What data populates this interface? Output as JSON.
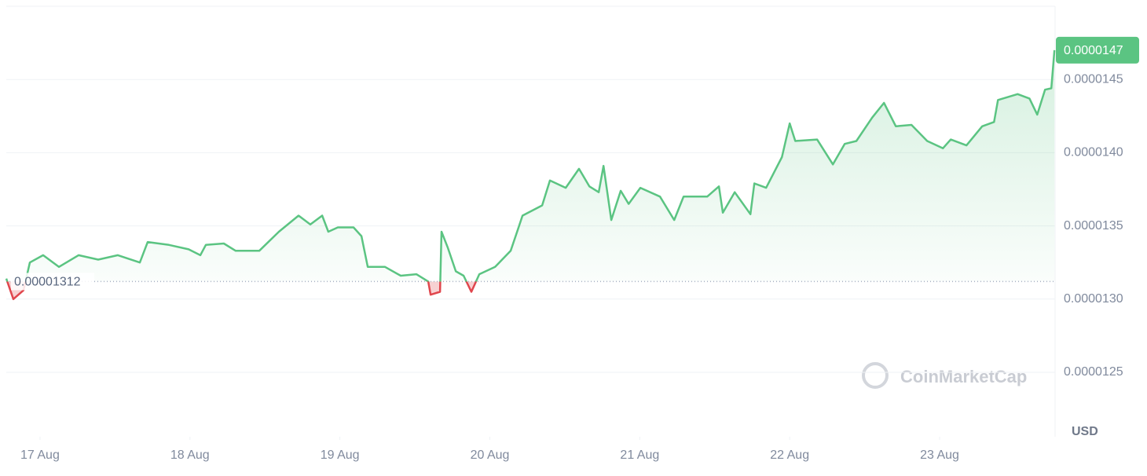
{
  "chart_data": {
    "type": "line",
    "x": [
      16.775,
      16.822,
      16.89,
      16.932,
      17.021,
      17.126,
      17.257,
      17.388,
      17.519,
      17.666,
      17.718,
      17.86,
      17.991,
      18.069,
      18.106,
      18.226,
      18.305,
      18.462,
      18.593,
      18.724,
      18.803,
      18.882,
      18.923,
      18.986,
      19.091,
      19.144,
      19.186,
      19.301,
      19.406,
      19.51,
      19.589,
      19.605,
      19.668,
      19.678,
      19.72,
      19.773,
      19.825,
      19.877,
      19.93,
      20.035,
      20.139,
      20.192,
      20.218,
      20.349,
      20.401,
      20.506,
      20.595,
      20.664,
      20.726,
      20.758,
      20.81,
      20.873,
      20.926,
      21.004,
      21.135,
      21.23,
      21.292,
      21.45,
      21.528,
      21.554,
      21.633,
      21.738,
      21.764,
      21.843,
      21.948,
      22,
      22.037,
      22.183,
      22.288,
      22.367,
      22.445,
      22.55,
      22.629,
      22.708,
      22.812,
      22.917,
      23.022,
      23.074,
      23.179,
      23.284,
      23.363,
      23.389,
      23.52,
      23.599,
      23.651,
      23.703,
      23.745,
      23.766
    ],
    "values": [
      1.314e-05,
      1.3e-05,
      1.306e-05,
      1.325e-05,
      1.33e-05,
      1.322e-05,
      1.33e-05,
      1.327e-05,
      1.33e-05,
      1.325e-05,
      1.339e-05,
      1.337e-05,
      1.334e-05,
      1.33e-05,
      1.337e-05,
      1.338e-05,
      1.333e-05,
      1.333e-05,
      1.346e-05,
      1.357e-05,
      1.351e-05,
      1.357e-05,
      1.346e-05,
      1.349e-05,
      1.349e-05,
      1.343e-05,
      1.322e-05,
      1.322e-05,
      1.316e-05,
      1.317e-05,
      1.312e-05,
      1.303e-05,
      1.305e-05,
      1.346e-05,
      1.335e-05,
      1.319e-05,
      1.316e-05,
      1.305e-05,
      1.317e-05,
      1.322e-05,
      1.333e-05,
      1.349e-05,
      1.357e-05,
      1.364e-05,
      1.381e-05,
      1.376e-05,
      1.389e-05,
      1.377e-05,
      1.373e-05,
      1.391e-05,
      1.354e-05,
      1.374e-05,
      1.365e-05,
      1.376e-05,
      1.37e-05,
      1.354e-05,
      1.37e-05,
      1.37e-05,
      1.377e-05,
      1.359e-05,
      1.373e-05,
      1.358e-05,
      1.379e-05,
      1.376e-05,
      1.397e-05,
      1.42e-05,
      1.408e-05,
      1.409e-05,
      1.392e-05,
      1.406e-05,
      1.408e-05,
      1.424e-05,
      1.434e-05,
      1.418e-05,
      1.419e-05,
      1.408e-05,
      1.403e-05,
      1.409e-05,
      1.405e-05,
      1.418e-05,
      1.421e-05,
      1.436e-05,
      1.44e-05,
      1.437e-05,
      1.426e-05,
      1.443e-05,
      1.444e-05,
      1.47e-05
    ],
    "color": "#5bc482",
    "down_color": "#e0464d",
    "baseline": 1.312e-05,
    "xlim": [
      16.775,
      23.77
    ],
    "xticks": [
      {
        "value": 17,
        "label": "17 Aug"
      },
      {
        "value": 18,
        "label": "18 Aug"
      },
      {
        "value": 19,
        "label": "19 Aug"
      },
      {
        "value": 20,
        "label": "20 Aug"
      },
      {
        "value": 21,
        "label": "21 Aug"
      },
      {
        "value": 22,
        "label": "22 Aug"
      },
      {
        "value": 23,
        "label": "23 Aug"
      }
    ],
    "ylim": [
      1.206e-05,
      1.5e-05
    ],
    "yticks": [
      1.25e-05,
      {
        "value": 1.3e-05,
        "label": "0.0000130"
      },
      1.35e-05,
      {
        "value": 1.4e-05,
        "label": "0.0000140"
      },
      1.45e-05
    ],
    "grid": true,
    "unit_label": "USD",
    "watermark": "CoinMarketCap"
  }
}
